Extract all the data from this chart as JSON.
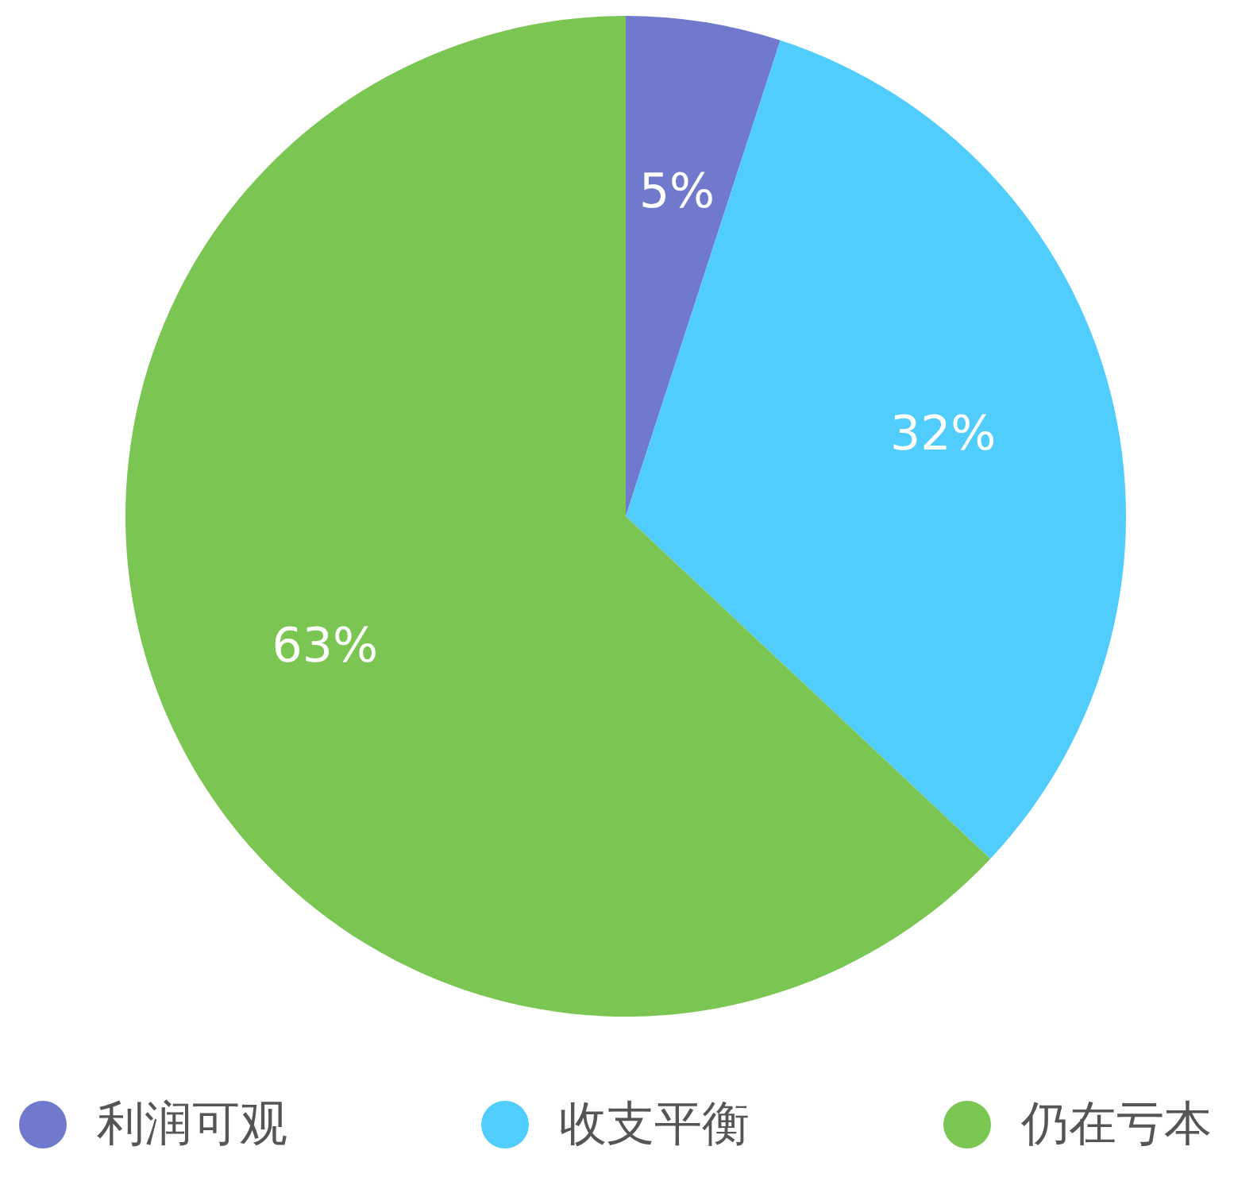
{
  "chart_data": {
    "type": "pie",
    "categories": [
      "利润可观",
      "收支平衡",
      "仍在亏本"
    ],
    "values": [
      5,
      32,
      63
    ],
    "colors": [
      "#7079cc",
      "#50cdfd",
      "#7bc652"
    ],
    "value_labels": [
      "5%",
      "32%",
      "63%"
    ],
    "legend": "bottom"
  }
}
